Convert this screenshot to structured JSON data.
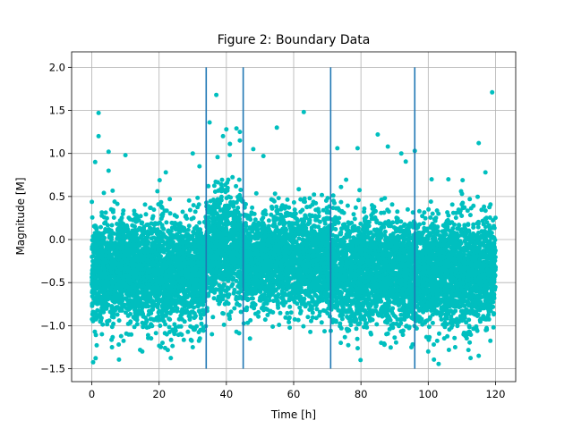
{
  "chart_data": {
    "type": "scatter",
    "title": "Figure 2: Boundary Data",
    "xlabel": "Time [h]",
    "ylabel": "Magnitude [M]",
    "xlim": [
      -6,
      126
    ],
    "ylim": [
      -1.65,
      2.18
    ],
    "xticks": [
      0,
      20,
      40,
      60,
      80,
      100,
      120
    ],
    "xtick_labels": [
      "0",
      "20",
      "40",
      "60",
      "80",
      "100",
      "120"
    ],
    "yticks": [
      -1.5,
      -1.0,
      -0.5,
      0.0,
      0.5,
      1.0,
      1.5,
      2.0
    ],
    "ytick_labels": [
      "−1.5",
      "−1.0",
      "−0.5",
      "0.0",
      "0.5",
      "1.0",
      "1.5",
      "2.0"
    ],
    "grid": true,
    "point_color": "#00bfbf",
    "line_color": "#1f77b4",
    "x_range": [
      0,
      120
    ],
    "segments": [
      {
        "x_start": 0,
        "x_end": 34,
        "y_center": -0.38,
        "y_spread": 0.3
      },
      {
        "x_start": 34,
        "x_end": 45,
        "y_center": -0.1,
        "y_spread": 0.32
      },
      {
        "x_start": 45,
        "x_end": 71,
        "y_center": -0.25,
        "y_spread": 0.28
      },
      {
        "x_start": 71,
        "x_end": 96,
        "y_center": -0.38,
        "y_spread": 0.3
      },
      {
        "x_start": 96,
        "x_end": 120,
        "y_center": -0.38,
        "y_spread": 0.3
      }
    ],
    "vertical_lines": [
      {
        "x": 34,
        "y_min": -1.5,
        "y_max": 2.0
      },
      {
        "x": 45,
        "y_min": -1.5,
        "y_max": 2.0
      },
      {
        "x": 71,
        "y_min": -1.5,
        "y_max": 2.0
      },
      {
        "x": 96,
        "y_min": -1.5,
        "y_max": 2.0
      }
    ],
    "outliers": [
      {
        "x": 2,
        "y": 1.47
      },
      {
        "x": 2,
        "y": 1.2
      },
      {
        "x": 1,
        "y": 0.9
      },
      {
        "x": 5,
        "y": 1.02
      },
      {
        "x": 5,
        "y": 0.8
      },
      {
        "x": 10,
        "y": 0.98
      },
      {
        "x": 22,
        "y": 0.78
      },
      {
        "x": 30,
        "y": 1.0
      },
      {
        "x": 32,
        "y": 0.85
      },
      {
        "x": 35,
        "y": 1.36
      },
      {
        "x": 37,
        "y": 1.68
      },
      {
        "x": 39,
        "y": 1.2
      },
      {
        "x": 40,
        "y": 1.28
      },
      {
        "x": 41,
        "y": 0.98
      },
      {
        "x": 43,
        "y": 1.29
      },
      {
        "x": 44,
        "y": 1.25
      },
      {
        "x": 44,
        "y": 1.15
      },
      {
        "x": 48,
        "y": 1.05
      },
      {
        "x": 51,
        "y": 0.97
      },
      {
        "x": 55,
        "y": 1.3
      },
      {
        "x": 63,
        "y": 1.48
      },
      {
        "x": 73,
        "y": 1.06
      },
      {
        "x": 79,
        "y": 1.06
      },
      {
        "x": 85,
        "y": 1.22
      },
      {
        "x": 88,
        "y": 1.08
      },
      {
        "x": 92,
        "y": 1.0
      },
      {
        "x": 96,
        "y": 1.03
      },
      {
        "x": 101,
        "y": 0.7
      },
      {
        "x": 106,
        "y": 0.7
      },
      {
        "x": 115,
        "y": 1.12
      },
      {
        "x": 119,
        "y": 1.71
      },
      {
        "x": 117,
        "y": 0.78
      },
      {
        "x": 3,
        "y": -1.1
      },
      {
        "x": 6,
        "y": -1.25
      },
      {
        "x": 15,
        "y": -1.3
      },
      {
        "x": 21,
        "y": -1.2
      },
      {
        "x": 30,
        "y": -1.25
      },
      {
        "x": 47,
        "y": -1.15
      },
      {
        "x": 74,
        "y": -1.2
      },
      {
        "x": 86,
        "y": -1.2
      },
      {
        "x": 95,
        "y": -1.25
      },
      {
        "x": 100,
        "y": -1.3
      },
      {
        "x": 108,
        "y": -1.25
      },
      {
        "x": 115,
        "y": -1.35
      }
    ]
  }
}
